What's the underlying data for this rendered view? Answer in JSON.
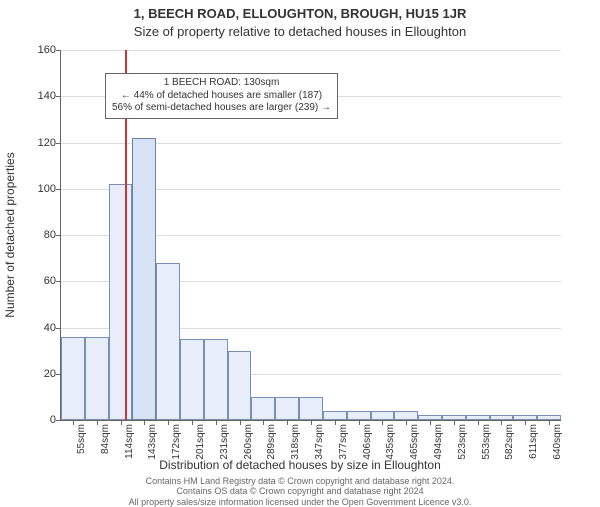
{
  "title_address": "1, BEECH ROAD, ELLOUGHTON, BROUGH, HU15 1JR",
  "title_sub": "Size of property relative to detached houses in Elloughton",
  "y_axis_label": "Number of detached properties",
  "x_axis_label": "Distribution of detached houses by size in Elloughton",
  "footer_line1": "Contains HM Land Registry data © Crown copyright and database right 2024.",
  "footer_line2": "Contains OS data © Crown copyright and database right 2024",
  "footer_line3": "All property sales/size information licensed under the Open Government Licence v3.0.",
  "annotation": {
    "line1": "1 BEECH ROAD: 130sqm",
    "line2": "← 44% of detached houses are smaller (187)",
    "line3": "56% of semi-detached houses are larger (239) →"
  },
  "chart": {
    "type": "histogram",
    "background_color": "#ffffff",
    "grid_color": "#dddddd",
    "axis_color": "#666666",
    "bar_fill": "#e8eef9",
    "bar_stroke": "#7a8fb5",
    "highlight_fill": "#d8e2f5",
    "annotation_line_color": "#cc3333",
    "ylim": [
      0,
      160
    ],
    "yticks": [
      0,
      20,
      40,
      60,
      80,
      100,
      120,
      140,
      160
    ],
    "x_labels": [
      "55sqm",
      "84sqm",
      "114sqm",
      "143sqm",
      "172sqm",
      "201sqm",
      "231sqm",
      "260sqm",
      "289sqm",
      "318sqm",
      "347sqm",
      "377sqm",
      "406sqm",
      "435sqm",
      "465sqm",
      "494sqm",
      "523sqm",
      "553sqm",
      "582sqm",
      "611sqm",
      "640sqm"
    ],
    "x_tick_every": 1,
    "bin_values": [
      36,
      36,
      102,
      122,
      68,
      35,
      35,
      30,
      10,
      10,
      10,
      4,
      4,
      4,
      4,
      2,
      2,
      2,
      2,
      2,
      2
    ],
    "n_bins": 21,
    "bar_width_ratio": 1.0,
    "highlight_bin_index": 3,
    "annotation_x_bin": 3,
    "title_fontsize": 13,
    "label_fontsize": 12,
    "tick_fontsize": 11
  }
}
